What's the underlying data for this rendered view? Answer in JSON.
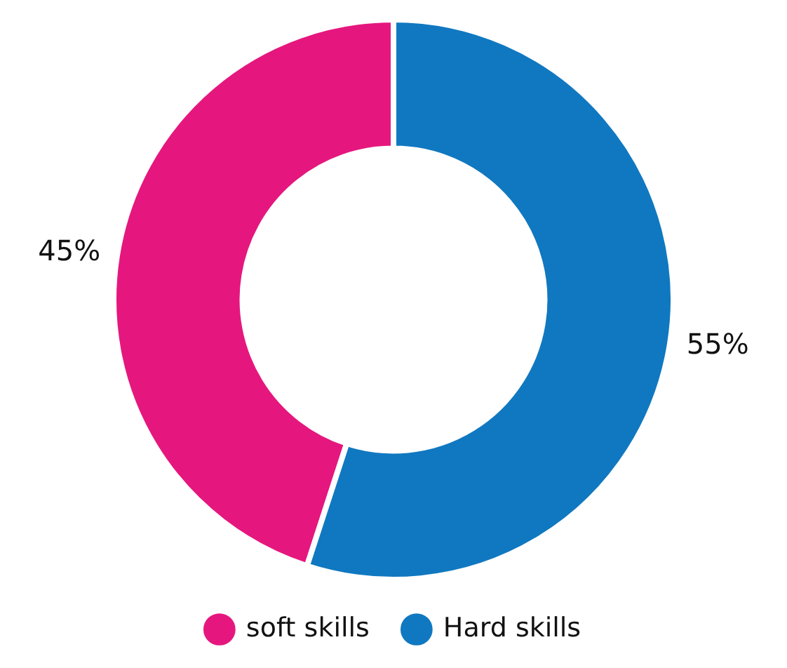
{
  "chart_data": {
    "type": "donut",
    "categories": [
      "soft skills",
      "Hard skills"
    ],
    "values": [
      45,
      55
    ],
    "colors": [
      "#e5177e",
      "#1078c0"
    ],
    "value_labels": [
      "45%",
      "55%"
    ],
    "legend": "bottom"
  }
}
